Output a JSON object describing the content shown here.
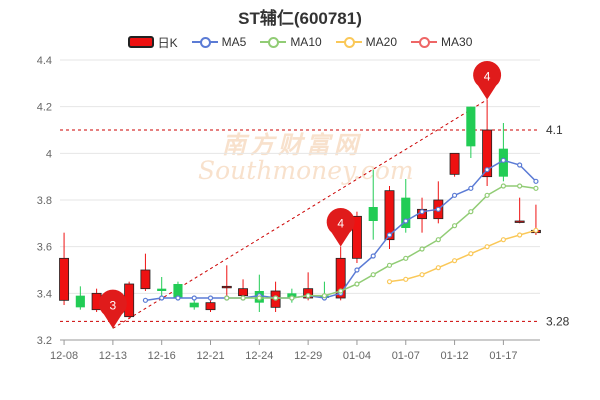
{
  "page": {
    "title": "ST辅仁(600781)",
    "watermark": {
      "cn": "南方财富网",
      "en": "Southmoney.com"
    }
  },
  "legend": [
    {
      "label": "日K",
      "kind": "candle",
      "color": "#ee1111"
    },
    {
      "label": "MA5",
      "kind": "line",
      "color": "#5b7bd5"
    },
    {
      "label": "MA10",
      "kind": "line",
      "color": "#91cc75"
    },
    {
      "label": "MA20",
      "kind": "line",
      "color": "#fac858"
    },
    {
      "label": "MA30",
      "kind": "line",
      "color": "#ee6666"
    }
  ],
  "chart_data": {
    "type": "candlestick",
    "title": "ST辅仁(600781)",
    "xlabel": "",
    "ylabel": "",
    "ylim": [
      3.2,
      4.4
    ],
    "y_ticks": [
      3.2,
      3.4,
      3.6,
      3.8,
      4,
      4.2,
      4.4
    ],
    "x_tick_labels": [
      "12-08",
      "12-13",
      "12-16",
      "12-21",
      "12-24",
      "12-29",
      "01-04",
      "01-07",
      "01-12",
      "01-17"
    ],
    "x_tick_indices": [
      0,
      3,
      6,
      9,
      12,
      15,
      18,
      21,
      24,
      27
    ],
    "up_color": "#ee1111",
    "down_color": "#22cc55",
    "candles": [
      {
        "o": 3.37,
        "c": 3.55,
        "h": 3.66,
        "l": 3.35
      },
      {
        "o": 3.39,
        "c": 3.34,
        "h": 3.43,
        "l": 3.33
      },
      {
        "o": 3.33,
        "c": 3.4,
        "h": 3.42,
        "l": 3.32
      },
      {
        "o": 3.35,
        "c": 3.28,
        "h": 3.37,
        "l": 3.25
      },
      {
        "o": 3.3,
        "c": 3.44,
        "h": 3.45,
        "l": 3.29
      },
      {
        "o": 3.42,
        "c": 3.5,
        "h": 3.57,
        "l": 3.41
      },
      {
        "o": 3.42,
        "c": 3.41,
        "h": 3.47,
        "l": 3.37
      },
      {
        "o": 3.44,
        "c": 3.38,
        "h": 3.45,
        "l": 3.37
      },
      {
        "o": 3.36,
        "c": 3.34,
        "h": 3.38,
        "l": 3.33
      },
      {
        "o": 3.33,
        "c": 3.36,
        "h": 3.37,
        "l": 3.32
      },
      {
        "o": 3.43,
        "c": 3.43,
        "h": 3.52,
        "l": 3.38
      },
      {
        "o": 3.39,
        "c": 3.42,
        "h": 3.46,
        "l": 3.37
      },
      {
        "o": 3.41,
        "c": 3.36,
        "h": 3.48,
        "l": 3.32
      },
      {
        "o": 3.34,
        "c": 3.41,
        "h": 3.45,
        "l": 3.32
      },
      {
        "o": 3.4,
        "c": 3.38,
        "h": 3.42,
        "l": 3.36
      },
      {
        "o": 3.38,
        "c": 3.42,
        "h": 3.49,
        "l": 3.37
      },
      {
        "o": 3.39,
        "c": 3.38,
        "h": 3.45,
        "l": 3.37
      },
      {
        "o": 3.38,
        "c": 3.55,
        "h": 3.6,
        "l": 3.37
      },
      {
        "o": 3.55,
        "c": 3.73,
        "h": 3.75,
        "l": 3.53
      },
      {
        "o": 3.77,
        "c": 3.71,
        "h": 3.93,
        "l": 3.63
      },
      {
        "o": 3.63,
        "c": 3.84,
        "h": 3.86,
        "l": 3.59
      },
      {
        "o": 3.81,
        "c": 3.68,
        "h": 3.89,
        "l": 3.66
      },
      {
        "o": 3.72,
        "c": 3.76,
        "h": 3.81,
        "l": 3.66
      },
      {
        "o": 3.72,
        "c": 3.8,
        "h": 3.88,
        "l": 3.7
      },
      {
        "o": 3.91,
        "c": 4.0,
        "h": 4.0,
        "l": 3.9
      },
      {
        "o": 4.2,
        "c": 4.03,
        "h": 4.2,
        "l": 3.98
      },
      {
        "o": 3.9,
        "c": 4.1,
        "h": 4.23,
        "l": 3.86
      },
      {
        "o": 4.02,
        "c": 3.9,
        "h": 4.13,
        "l": 3.88
      },
      {
        "o": 3.71,
        "c": 3.71,
        "h": 3.81,
        "l": 3.7
      },
      {
        "o": 3.66,
        "c": 3.67,
        "h": 3.78,
        "l": 3.65
      }
    ],
    "ma_series": [
      {
        "name": "MA5",
        "color": "#5b7bd5",
        "values": [
          null,
          null,
          null,
          null,
          null,
          3.37,
          3.38,
          3.38,
          3.38,
          3.38,
          3.38,
          3.38,
          3.39,
          3.38,
          3.38,
          3.39,
          3.38,
          3.4,
          3.5,
          3.56,
          3.65,
          3.71,
          3.75,
          3.76,
          3.82,
          3.85,
          3.93,
          3.97,
          3.95,
          3.88
        ]
      },
      {
        "name": "MA10",
        "color": "#91cc75",
        "values": [
          null,
          null,
          null,
          null,
          null,
          null,
          null,
          null,
          null,
          null,
          3.38,
          3.38,
          3.38,
          3.38,
          3.38,
          3.39,
          3.39,
          3.41,
          3.44,
          3.48,
          3.52,
          3.55,
          3.59,
          3.63,
          3.69,
          3.75,
          3.82,
          3.86,
          3.86,
          3.85
        ]
      },
      {
        "name": "MA20",
        "color": "#fac858",
        "values": [
          null,
          null,
          null,
          null,
          null,
          null,
          null,
          null,
          null,
          null,
          null,
          null,
          null,
          null,
          null,
          null,
          null,
          null,
          null,
          null,
          3.45,
          3.46,
          3.48,
          3.51,
          3.54,
          3.57,
          3.6,
          3.63,
          3.65,
          3.67
        ]
      },
      {
        "name": "MA30",
        "color": "#ee6666",
        "values": []
      }
    ],
    "markers": [
      {
        "label": "3",
        "index": 3,
        "value": 3.25,
        "kind": "low"
      },
      {
        "label": "4",
        "index": 17,
        "value": 3.6,
        "kind": "high"
      },
      {
        "label": "4",
        "index": 26,
        "value": 4.23,
        "kind": "high"
      }
    ],
    "reference_lines": [
      {
        "value": 4.1,
        "label": "4.1"
      },
      {
        "value": 3.28,
        "label": "3.28"
      }
    ],
    "trend_line": {
      "from": {
        "index": 3,
        "value": 3.25
      },
      "to": {
        "index": 26,
        "value": 4.23
      }
    },
    "grid": true
  }
}
